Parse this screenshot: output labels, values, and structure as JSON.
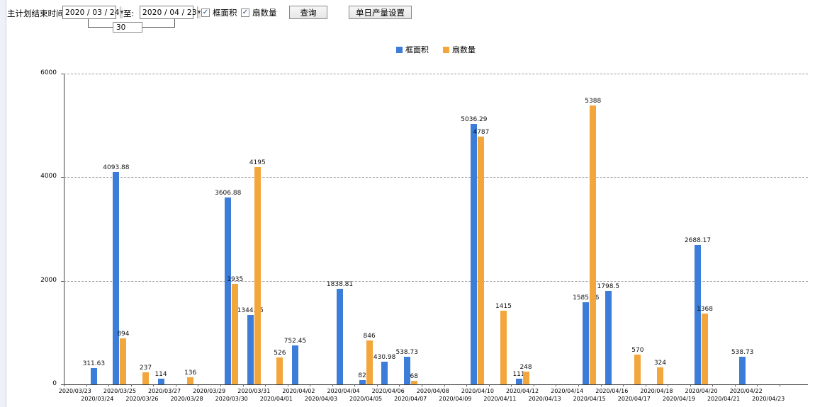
{
  "toolbar": {
    "plan_end_label": "主计划结束时间:",
    "date_from": "2020 / 03 / 24",
    "to_label": "至:",
    "date_to": "2020 / 04 / 23",
    "range_days": "30",
    "frame_area_checkbox": "框面积",
    "fan_count_checkbox": "扇数量",
    "query_button": "查询",
    "daily_output_button": "单日产量设置"
  },
  "icons": {
    "check": "✓",
    "dropdown": "▼"
  },
  "chart_data": {
    "type": "bar",
    "title": "",
    "categories": [
      "2020/03/23",
      "2020/03/24",
      "2020/03/25",
      "2020/03/26",
      "2020/03/27",
      "2020/03/28",
      "2020/03/29",
      "2020/03/30",
      "2020/03/31",
      "2020/04/01",
      "2020/04/02",
      "2020/04/03",
      "2020/04/04",
      "2020/04/05",
      "2020/04/06",
      "2020/04/07",
      "2020/04/08",
      "2020/04/09",
      "2020/04/10",
      "2020/04/11",
      "2020/04/12",
      "2020/04/13",
      "2020/04/14",
      "2020/04/15",
      "2020/04/16",
      "2020/04/17",
      "2020/04/18",
      "2020/04/19",
      "2020/04/20",
      "2020/04/21",
      "2020/04/22",
      "2020/04/23"
    ],
    "series": [
      {
        "name": "框面积",
        "color": "#3c7dd9",
        "values": [
          null,
          311.63,
          4093.88,
          null,
          114,
          null,
          null,
          3606.88,
          1344.95,
          null,
          752.45,
          null,
          1838.81,
          82,
          430.98,
          538.73,
          null,
          null,
          5036.29,
          null,
          111,
          null,
          null,
          1585.96,
          1798.5,
          null,
          null,
          null,
          2688.17,
          null,
          538.73,
          null
        ]
      },
      {
        "name": "扇数量",
        "color": "#f2a63b",
        "values": [
          null,
          null,
          894,
          237,
          null,
          136,
          null,
          1935,
          4195,
          526,
          null,
          null,
          null,
          846,
          null,
          68,
          null,
          null,
          4787,
          1415,
          248,
          null,
          null,
          5388,
          null,
          570,
          324,
          null,
          1368,
          null,
          null,
          null
        ]
      }
    ],
    "xlabel": "",
    "ylabel": "",
    "ylim": [
      0,
      6000
    ],
    "yticks": [
      0,
      2000,
      4000,
      6000
    ],
    "grid": "dashed-horizontal",
    "legend_position": "top-center"
  }
}
